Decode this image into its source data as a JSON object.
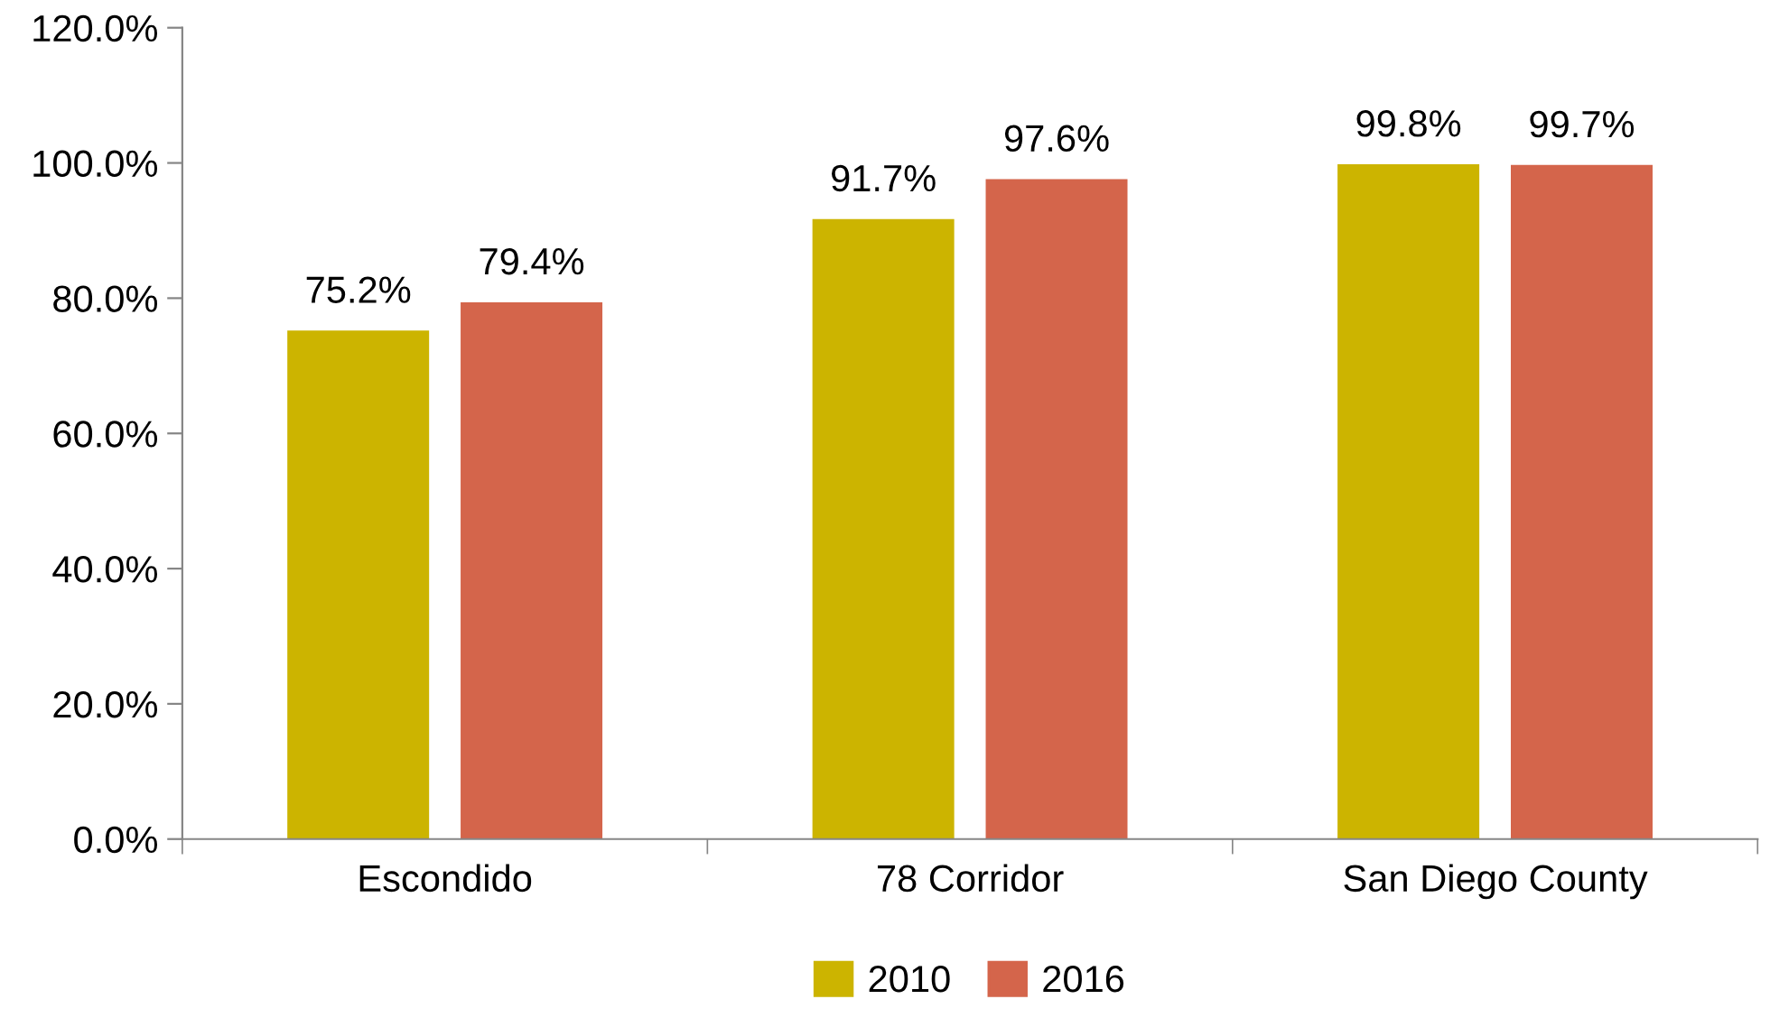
{
  "chart_data": {
    "type": "bar",
    "categories": [
      "Escondido",
      "78 Corridor",
      "San Diego County"
    ],
    "series": [
      {
        "name": "2010",
        "color": "#ccb400",
        "values": [
          75.2,
          91.7,
          99.8
        ],
        "value_labels": [
          "75.2%",
          "91.7%",
          "99.8%"
        ]
      },
      {
        "name": "2016",
        "color": "#d4654b",
        "values": [
          79.4,
          97.6,
          99.7
        ],
        "value_labels": [
          "79.4%",
          "97.6%",
          "99.7%"
        ]
      }
    ],
    "ylim": [
      0,
      120
    ],
    "yticks": [
      {
        "value": 0,
        "label": "0.0%"
      },
      {
        "value": 20,
        "label": "20.0%"
      },
      {
        "value": 40,
        "label": "40.0%"
      },
      {
        "value": 60,
        "label": "60.0%"
      },
      {
        "value": 80,
        "label": "80.0%"
      },
      {
        "value": 100,
        "label": "100.0%"
      },
      {
        "value": 120,
        "label": "120.0%"
      }
    ],
    "grid": false,
    "legend": "bottom"
  }
}
